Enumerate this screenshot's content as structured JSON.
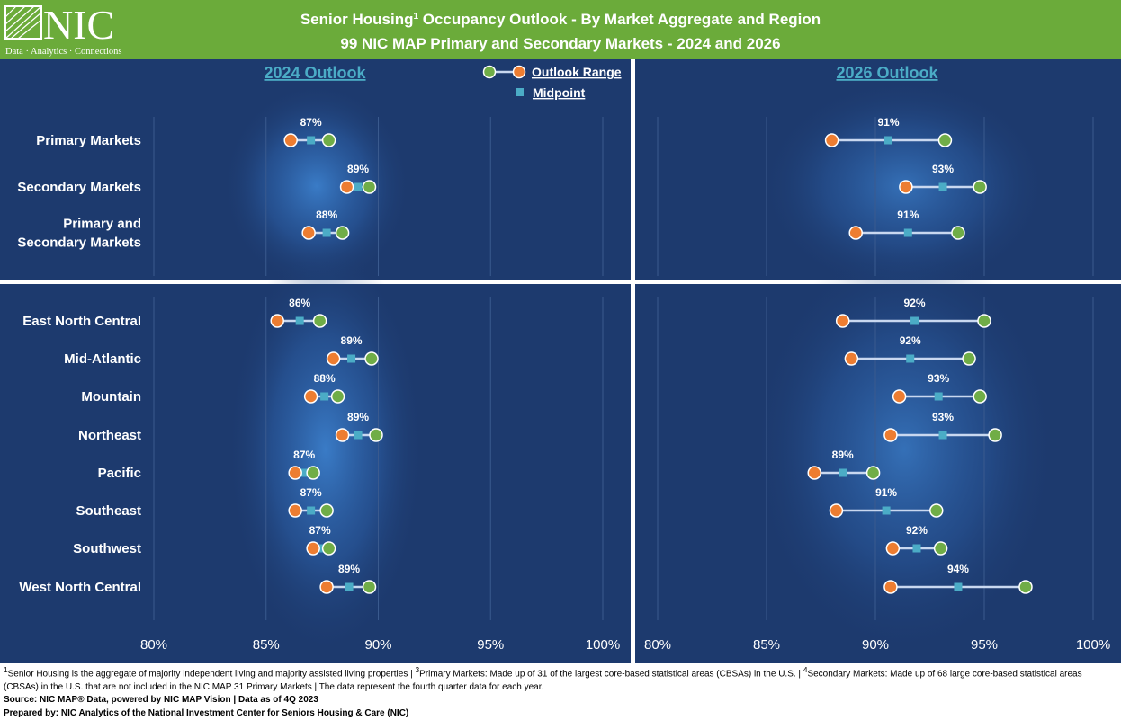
{
  "header": {
    "logo_text": "NIC",
    "logo_tagline": "Data · Analytics · Connections",
    "title_line1_pre": "Senior Housing",
    "title_line1_sup": "1",
    "title_line1_post": " Occupancy Outlook - By Market Aggregate and Region",
    "title_line2": "99 NIC MAP Primary and Secondary Markets - 2024 and 2026"
  },
  "legend": {
    "range_label": "Outlook Range",
    "midpoint_label": "Midpoint"
  },
  "colors": {
    "header_bg": "#6bab3a",
    "panel_bg": "#1d3a6e",
    "low_marker": "#ed7d31",
    "high_marker": "#70ad47",
    "midpoint_marker": "#4bacc6",
    "range_line": "#c9d8f0",
    "panel_title": "#4bacc6"
  },
  "chart_data": [
    {
      "type": "dumbbell",
      "title": "2024 Outlook",
      "xlim": [
        80,
        100
      ],
      "xticks": [
        "80%",
        "85%",
        "90%",
        "95%",
        "100%"
      ],
      "top_group": [
        {
          "category": [
            "Primary Markets"
          ],
          "low": 86.1,
          "high": 87.8,
          "mid": 87.0,
          "label": "87%"
        },
        {
          "category": [
            "Secondary Markets"
          ],
          "low": 88.6,
          "high": 89.6,
          "mid": 89.1,
          "label": "89%"
        },
        {
          "category": [
            "Primary and",
            "Secondary Markets"
          ],
          "low": 86.9,
          "high": 88.4,
          "mid": 87.7,
          "label": "88%"
        }
      ],
      "bottom_group": [
        {
          "category": [
            "East North Central"
          ],
          "low": 85.5,
          "high": 87.4,
          "mid": 86.5,
          "label": "86%"
        },
        {
          "category": [
            "Mid-Atlantic"
          ],
          "low": 88.0,
          "high": 89.7,
          "mid": 88.8,
          "label": "89%"
        },
        {
          "category": [
            "Mountain"
          ],
          "low": 87.0,
          "high": 88.2,
          "mid": 87.6,
          "label": "88%"
        },
        {
          "category": [
            "Northeast"
          ],
          "low": 88.4,
          "high": 89.9,
          "mid": 89.1,
          "label": "89%"
        },
        {
          "category": [
            "Pacific"
          ],
          "low": 86.3,
          "high": 87.1,
          "mid": 86.7,
          "label": "87%"
        },
        {
          "category": [
            "Southeast"
          ],
          "low": 86.3,
          "high": 87.7,
          "mid": 87.0,
          "label": "87%"
        },
        {
          "category": [
            "Southwest"
          ],
          "low": 87.1,
          "high": 87.8,
          "mid": 87.4,
          "label": "87%"
        },
        {
          "category": [
            "West North Central"
          ],
          "low": 87.7,
          "high": 89.6,
          "mid": 88.7,
          "label": "89%"
        }
      ]
    },
    {
      "type": "dumbbell",
      "title": "2026 Outlook",
      "xlim": [
        80,
        100
      ],
      "xticks": [
        "80%",
        "85%",
        "90%",
        "95%",
        "100%"
      ],
      "top_group": [
        {
          "low": 88.0,
          "high": 93.2,
          "mid": 90.6,
          "label": "91%"
        },
        {
          "low": 91.4,
          "high": 94.8,
          "mid": 93.1,
          "label": "93%"
        },
        {
          "low": 89.1,
          "high": 93.8,
          "mid": 91.5,
          "label": "91%"
        }
      ],
      "bottom_group": [
        {
          "low": 88.5,
          "high": 95.0,
          "mid": 91.8,
          "label": "92%"
        },
        {
          "low": 88.9,
          "high": 94.3,
          "mid": 91.6,
          "label": "92%"
        },
        {
          "low": 91.1,
          "high": 94.8,
          "mid": 92.9,
          "label": "93%"
        },
        {
          "low": 90.7,
          "high": 95.5,
          "mid": 93.1,
          "label": "93%"
        },
        {
          "low": 87.2,
          "high": 89.9,
          "mid": 88.5,
          "label": "89%"
        },
        {
          "low": 88.2,
          "high": 92.8,
          "mid": 90.5,
          "label": "91%"
        },
        {
          "low": 90.8,
          "high": 93.0,
          "mid": 91.9,
          "label": "92%"
        },
        {
          "low": 90.7,
          "high": 96.9,
          "mid": 93.8,
          "label": "94%"
        }
      ]
    }
  ],
  "footer": {
    "note1_sup": "1",
    "note1": "Senior Housing is the aggregate of majority independent living and majority assisted living properties | ",
    "note3_sup": "3",
    "note3": "Primary Markets: Made up of 31 of the largest core-based statistical areas (CBSAs) in the U.S. | ",
    "note4_sup": "4",
    "note4": "Secondary Markets: Made up of 68 large core-based statistical areas (CBSAs) in the U.S. that are not included in the NIC MAP 31 Primary Markets | The data represent the fourth quarter data for each year.",
    "source": "Source: NIC MAP® Data, powered by NIC MAP Vision | Data as of 4Q 2023",
    "prepared": "Prepared by: NIC Analytics of the National Investment Center for Seniors Housing & Care (NIC)"
  }
}
